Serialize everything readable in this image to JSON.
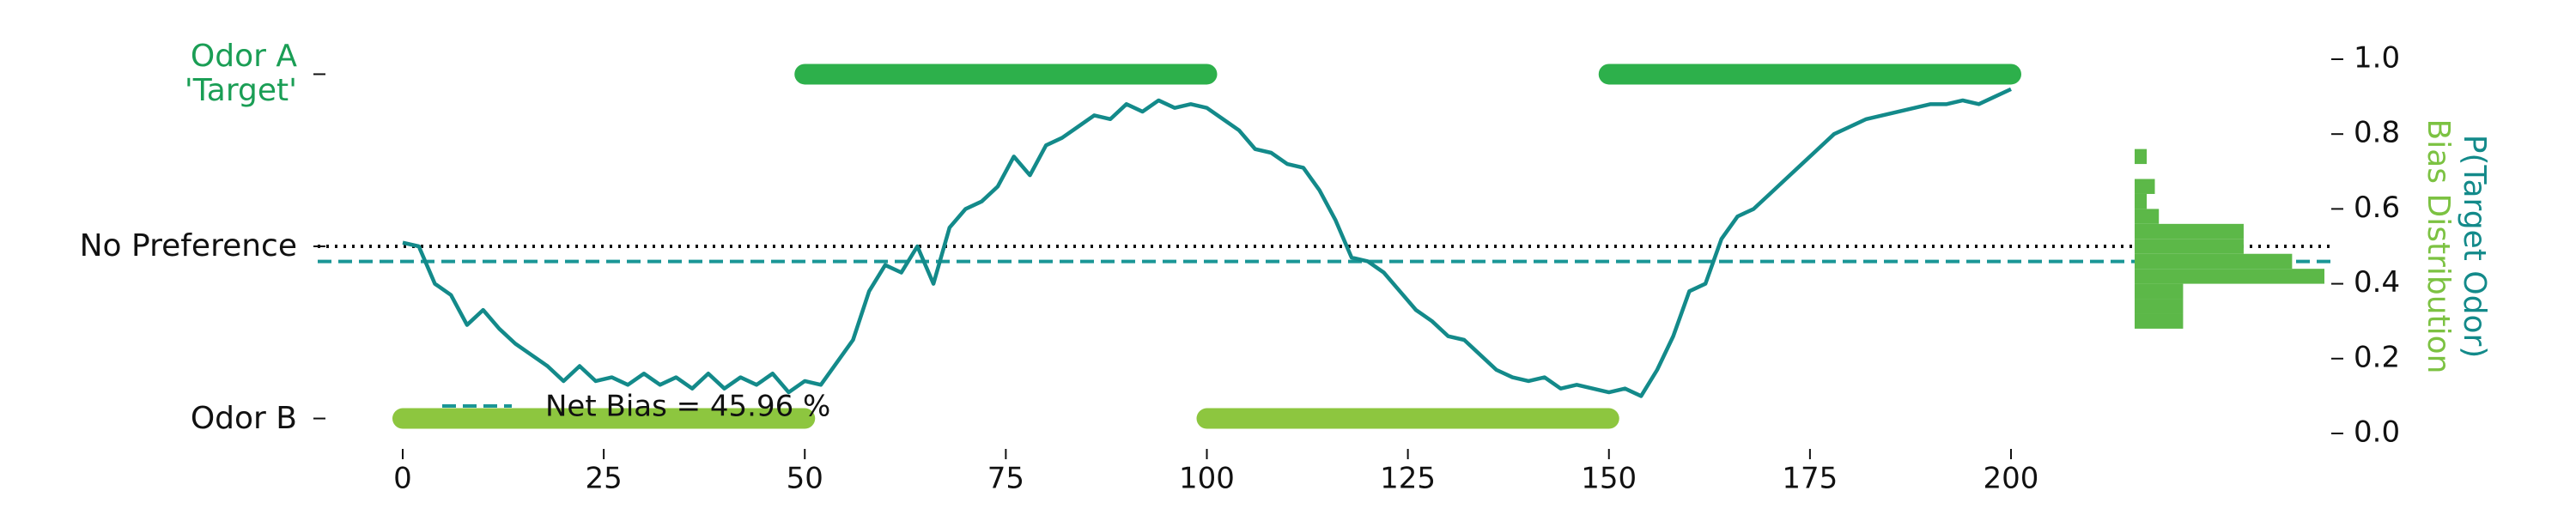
{
  "chart_data": {
    "type": "line",
    "y_label": "P(Target Odor)",
    "hist_label": "Bias Distribution",
    "xlim": [
      0,
      200
    ],
    "xticks": [
      0,
      25,
      50,
      75,
      100,
      125,
      150,
      175,
      200
    ],
    "ylim": [
      0,
      1
    ],
    "yticks": [
      {
        "value": 0,
        "label": "0.0"
      },
      0.2,
      0.4,
      0.6,
      0.8,
      {
        "value": 1,
        "label": "1.0"
      }
    ],
    "left_ticks": [
      {
        "value": 0.96,
        "label": "Odor A\n'Target'",
        "color": "#1a9e55"
      },
      {
        "value": 0.5,
        "label": "No Preference",
        "color": "#111111"
      },
      {
        "value": 0.04,
        "label": "Odor B",
        "color": "#111111"
      }
    ],
    "no_preference": 0.5,
    "net_bias": 0.4596,
    "net_bias_label": "Net Bias = 45.96 %",
    "net_bias_color": "#1a9696",
    "odor_blocks": [
      {
        "level": 0.04,
        "start": 0,
        "end": 50,
        "color": "#8dc63f"
      },
      {
        "level": 0.96,
        "start": 50,
        "end": 100,
        "color": "#2db04b"
      },
      {
        "level": 0.04,
        "start": 100,
        "end": 150,
        "color": "#8dc63f"
      },
      {
        "level": 0.96,
        "start": 150,
        "end": 200,
        "color": "#2db04b"
      }
    ],
    "histogram": {
      "bins": [
        0.28,
        0.32,
        0.36,
        0.4,
        0.44,
        0.48,
        0.52,
        0.56,
        0.6,
        0.64,
        0.68,
        0.72,
        0.76
      ],
      "counts": [
        12,
        12,
        12,
        47,
        39,
        27,
        27,
        6,
        3,
        5,
        0,
        3
      ],
      "color": "#5cb848"
    },
    "series": [
      {
        "name": "P(Target Odor)",
        "color": "#138a8a",
        "x": [
          0,
          2,
          4,
          6,
          8,
          10,
          12,
          14,
          16,
          18,
          20,
          22,
          24,
          26,
          28,
          30,
          32,
          34,
          36,
          38,
          40,
          42,
          44,
          46,
          48,
          50,
          52,
          54,
          56,
          58,
          60,
          62,
          64,
          66,
          68,
          70,
          72,
          74,
          76,
          78,
          80,
          82,
          84,
          86,
          88,
          90,
          92,
          94,
          96,
          98,
          100,
          102,
          104,
          106,
          108,
          110,
          112,
          114,
          116,
          118,
          120,
          122,
          124,
          126,
          128,
          130,
          132,
          134,
          136,
          138,
          140,
          142,
          144,
          146,
          148,
          150,
          152,
          154,
          156,
          158,
          160,
          162,
          164,
          166,
          168,
          170,
          172,
          174,
          176,
          178,
          180,
          182,
          184,
          186,
          188,
          190,
          192,
          194,
          196,
          198,
          200
        ],
        "values": [
          0.51,
          0.5,
          0.4,
          0.37,
          0.29,
          0.33,
          0.28,
          0.24,
          0.21,
          0.18,
          0.14,
          0.18,
          0.14,
          0.15,
          0.13,
          0.16,
          0.13,
          0.15,
          0.12,
          0.16,
          0.12,
          0.15,
          0.13,
          0.16,
          0.11,
          0.14,
          0.13,
          0.19,
          0.25,
          0.38,
          0.45,
          0.43,
          0.5,
          0.4,
          0.55,
          0.6,
          0.62,
          0.66,
          0.74,
          0.69,
          0.77,
          0.79,
          0.82,
          0.85,
          0.84,
          0.88,
          0.86,
          0.89,
          0.87,
          0.88,
          0.87,
          0.84,
          0.81,
          0.76,
          0.75,
          0.72,
          0.71,
          0.65,
          0.57,
          0.47,
          0.46,
          0.43,
          0.38,
          0.33,
          0.3,
          0.26,
          0.25,
          0.21,
          0.17,
          0.15,
          0.14,
          0.15,
          0.12,
          0.13,
          0.12,
          0.11,
          0.12,
          0.1,
          0.17,
          0.26,
          0.38,
          0.4,
          0.52,
          0.58,
          0.6,
          0.64,
          0.68,
          0.72,
          0.76,
          0.8,
          0.82,
          0.84,
          0.85,
          0.86,
          0.87,
          0.88,
          0.88,
          0.89,
          0.88,
          0.9,
          0.92
        ]
      }
    ]
  }
}
